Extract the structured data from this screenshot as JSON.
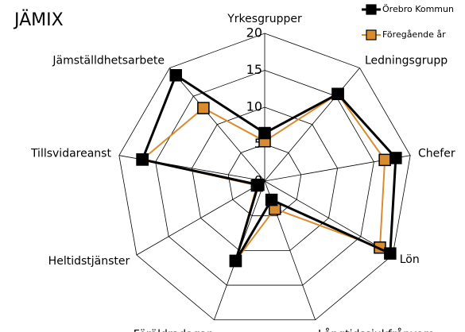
{
  "chart_data": {
    "type": "radar",
    "title": "JÄMIX",
    "categories": [
      "Yrkesgrupper",
      "Ledningsgrupp",
      "Chefer",
      "Lön",
      "Långtidssjukfrånvaro",
      "Föräldradagar",
      "Heltidstjänster",
      "Tillsvidareanst",
      "Jämställdhetsarbete"
    ],
    "series": [
      {
        "name": "Örebro Kommun",
        "color": "#000000",
        "values": [
          6.5,
          15.4,
          18,
          19.6,
          2.7,
          11.5,
          1,
          16.8,
          18.7
        ]
      },
      {
        "name": "Föregående år",
        "color": "#d98c2e",
        "values": [
          5.4,
          15.4,
          16.5,
          18,
          4,
          11.5,
          1.2,
          16.8,
          12.9
        ]
      }
    ],
    "rlim": [
      0,
      20
    ],
    "rticks": [
      0,
      5,
      10,
      15,
      20
    ],
    "grid": true,
    "legend": "top-right"
  }
}
